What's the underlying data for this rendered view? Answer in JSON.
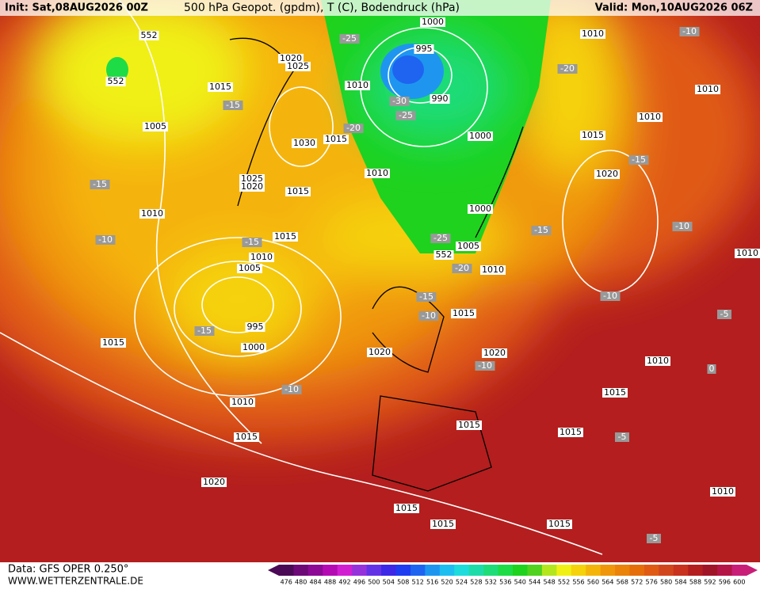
{
  "header": {
    "init": "Init: Sat,08AUG2026 00Z",
    "title": "500 hPa Geopot. (gpdm), T (C), Bodendruck (hPa)",
    "valid": "Valid: Mon,10AUG2026 06Z"
  },
  "footer": {
    "data": "Data: GFS OPER 0.250°",
    "site": "WWW.WETTERZENTRALE.DE"
  },
  "colorbar": {
    "labels": [
      476,
      480,
      484,
      488,
      492,
      496,
      500,
      504,
      508,
      512,
      516,
      520,
      524,
      528,
      532,
      536,
      540,
      544,
      548,
      552,
      556,
      560,
      564,
      568,
      572,
      576,
      580,
      584,
      588,
      592,
      596,
      600
    ],
    "colors": [
      "#4b0a55",
      "#6e0a78",
      "#8c0a96",
      "#b40ab4",
      "#d21ed2",
      "#9632dc",
      "#6432e6",
      "#3c28e6",
      "#1e3cf0",
      "#1e64f0",
      "#1e96f0",
      "#1ebef0",
      "#1edcdc",
      "#1edcaa",
      "#1edc78",
      "#1edc46",
      "#1ed21e",
      "#50d21e",
      "#b4e61e",
      "#f0f014",
      "#f5d20a",
      "#f5b40a",
      "#f0960a",
      "#eb820a",
      "#e66e0a",
      "#e05a14",
      "#d2461e",
      "#c8321e",
      "#b41e1e",
      "#a01428",
      "#b41446",
      "#c81e78"
    ]
  },
  "map": {
    "isobar_labels": [
      "1000",
      "1010",
      "552",
      "995",
      "1020",
      "1025",
      "552",
      "1015",
      "1010",
      "990",
      "1010",
      "1005",
      "1015",
      "1000",
      "1030",
      "1015",
      "1010",
      "1025",
      "1020",
      "1020",
      "1015",
      "1010",
      "1000",
      "1015",
      "1005",
      "1010",
      "1010",
      "1005",
      "995",
      "1000",
      "1015",
      "1015",
      "1020",
      "1020",
      "1010",
      "1015",
      "1010",
      "1015",
      "1015",
      "1015",
      "1020",
      "1010",
      "1015",
      "1015",
      "1015",
      "1010",
      "1010",
      "552"
    ],
    "temperature_labels": [
      "-10",
      "-25",
      "-20",
      "-15",
      "-30",
      "-25",
      "-20",
      "-15",
      "-15",
      "-10",
      "-15",
      "-25",
      "-15",
      "-10",
      "-20",
      "-15",
      "-10",
      "-10",
      "-15",
      "-5",
      "-10",
      "0",
      "-10",
      "-5",
      "-5"
    ]
  }
}
